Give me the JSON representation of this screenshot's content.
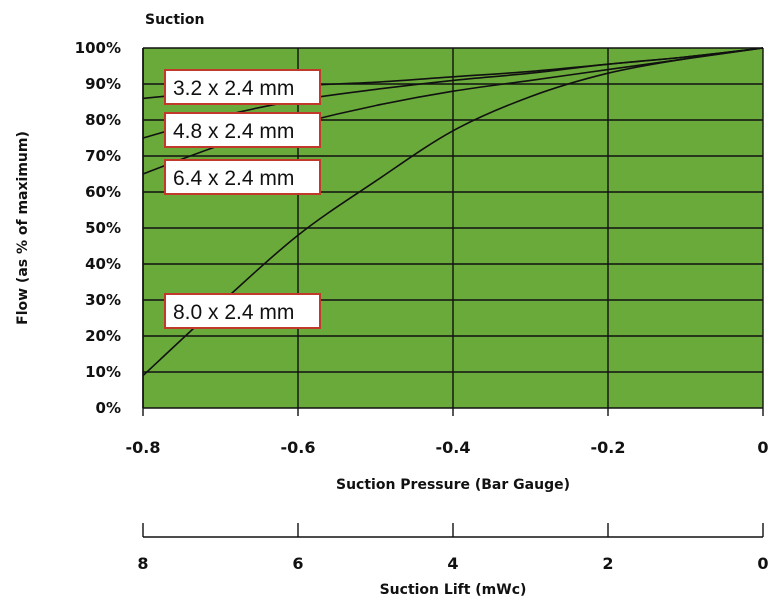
{
  "chart_data": {
    "type": "line",
    "title": "Suction",
    "xlabel": "Suction Pressure (Bar Gauge)",
    "ylabel": "Flow (as % of maximum)",
    "xlim": [
      -0.8,
      0
    ],
    "ylim": [
      0,
      100
    ],
    "grid": true,
    "x_ticks": [
      -0.8,
      -0.6,
      -0.4,
      -0.2,
      0
    ],
    "x_tick_labels": [
      "-0.8",
      "-0.6",
      "-0.4",
      "-0.2",
      "0"
    ],
    "y_ticks": [
      0,
      10,
      20,
      30,
      40,
      50,
      60,
      70,
      80,
      90,
      100
    ],
    "y_tick_labels": [
      "0%",
      "10%",
      "20%",
      "30%",
      "40%",
      "50%",
      "60%",
      "70%",
      "80%",
      "90%",
      "100%"
    ],
    "secondary_axis": {
      "label": "Suction Lift (mWc)",
      "ticks": [
        8,
        6,
        4,
        2,
        0
      ],
      "tick_labels": [
        "8",
        "6",
        "4",
        "2",
        "0"
      ]
    },
    "plot_background": "#6aaa3a",
    "grid_color": "#111111",
    "line_color": "#111111",
    "label_border_color": "#c0392b",
    "series": [
      {
        "name": "3.2 x 2.4 mm",
        "x": [
          -0.8,
          -0.7,
          -0.6,
          -0.5,
          -0.4,
          -0.3,
          -0.2,
          -0.1,
          0
        ],
        "values": [
          86,
          88,
          89.5,
          90.5,
          92,
          93.5,
          95.5,
          97.5,
          100
        ]
      },
      {
        "name": "4.8 x 2.4 mm",
        "x": [
          -0.8,
          -0.7,
          -0.6,
          -0.5,
          -0.4,
          -0.3,
          -0.2,
          -0.1,
          0
        ],
        "values": [
          75,
          81,
          85.5,
          88.5,
          91,
          93,
          95.5,
          97.5,
          100
        ]
      },
      {
        "name": "6.4 x 2.4 mm",
        "x": [
          -0.8,
          -0.7,
          -0.6,
          -0.5,
          -0.4,
          -0.3,
          -0.2,
          -0.1,
          0
        ],
        "values": [
          65,
          73,
          79,
          84,
          88,
          91,
          94,
          97,
          100
        ]
      },
      {
        "name": "8.0 x 2.4 mm",
        "x": [
          -0.8,
          -0.7,
          -0.6,
          -0.5,
          -0.4,
          -0.3,
          -0.2,
          -0.1,
          0
        ],
        "values": [
          9,
          29,
          48,
          63,
          77,
          86.5,
          93,
          97,
          100
        ]
      }
    ]
  }
}
